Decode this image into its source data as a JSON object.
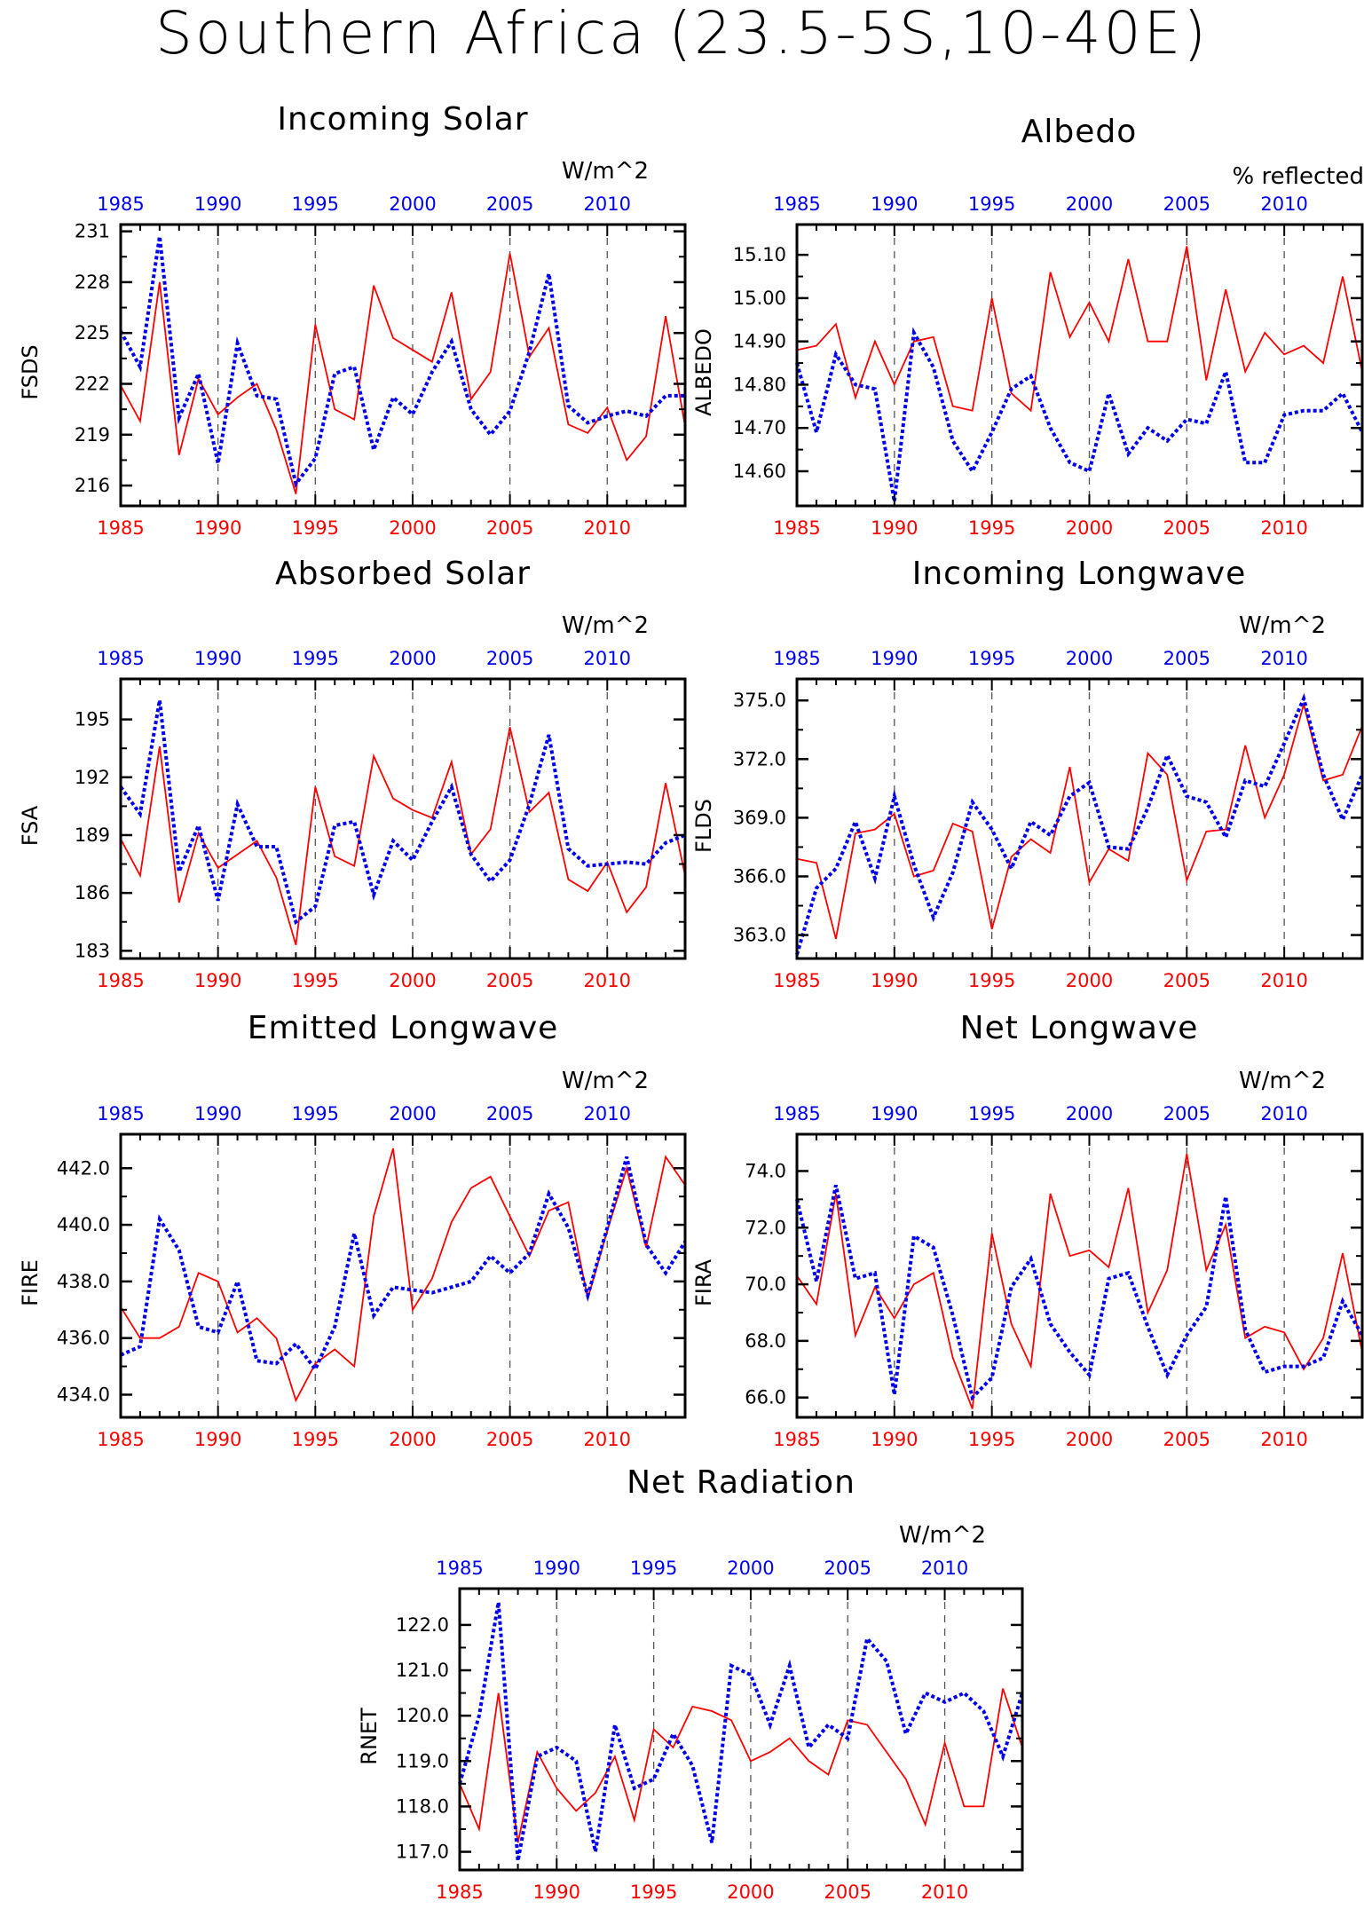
{
  "title": "Southern Africa (23.5-5S,10-40E)",
  "colors": {
    "red_series": "#ff0000",
    "blue_series": "#0000ee",
    "frame": "#000000"
  },
  "chart_data": [
    {
      "id": "fsds",
      "type": "line",
      "title": "Incoming Solar",
      "unit": "W/m^2",
      "ylabel": "FSDS",
      "xlim": [
        1985,
        2014
      ],
      "ylim": [
        214.8,
        231.4
      ],
      "yticks": [
        "216",
        "219",
        "222",
        "225",
        "228",
        "231"
      ],
      "xticks": [
        "1985",
        "1990",
        "1995",
        "2000",
        "2005",
        "2010"
      ],
      "x": [
        1985,
        1986,
        1987,
        1988,
        1989,
        1990,
        1991,
        1992,
        1993,
        1994,
        1995,
        1996,
        1997,
        1998,
        1999,
        2000,
        2001,
        2002,
        2003,
        2004,
        2005,
        2006,
        2007,
        2008,
        2009,
        2010,
        2011,
        2012,
        2013,
        2014
      ],
      "series": [
        {
          "color": "red",
          "style": "solid",
          "values": [
            221.9,
            219.8,
            228.0,
            217.8,
            222.3,
            220.2,
            221.2,
            222.0,
            219.3,
            215.5,
            225.5,
            220.5,
            219.9,
            227.8,
            224.7,
            224.0,
            223.3,
            227.4,
            221.1,
            222.7,
            229.7,
            223.6,
            225.3,
            219.6,
            219.1,
            220.6,
            217.5,
            218.9,
            226.0,
            219.5
          ]
        },
        {
          "color": "blue",
          "style": "dotted",
          "values": [
            225.1,
            223.0,
            230.7,
            220.0,
            222.6,
            217.3,
            224.4,
            221.3,
            221.1,
            216.1,
            217.6,
            222.6,
            223.0,
            218.1,
            221.2,
            220.2,
            222.7,
            224.5,
            220.5,
            219.0,
            220.4,
            223.9,
            228.5,
            220.7,
            219.7,
            220.1,
            220.4,
            220.1,
            221.3,
            221.3
          ]
        }
      ]
    },
    {
      "id": "albedo",
      "type": "line",
      "title": "Albedo",
      "unit": "% reflected",
      "ylabel": "ALBEDO",
      "xlim": [
        1985,
        2014
      ],
      "ylim": [
        14.52,
        15.17
      ],
      "yticks": [
        "14.60",
        "14.70",
        "14.80",
        "14.90",
        "15.00",
        "15.10"
      ],
      "xticks": [
        "1985",
        "1990",
        "1995",
        "2000",
        "2005",
        "2010"
      ],
      "x": [
        1985,
        1986,
        1987,
        1988,
        1989,
        1990,
        1991,
        1992,
        1993,
        1994,
        1995,
        1996,
        1997,
        1998,
        1999,
        2000,
        2001,
        2002,
        2003,
        2004,
        2005,
        2006,
        2007,
        2008,
        2009,
        2010,
        2011,
        2012,
        2013,
        2014
      ],
      "series": [
        {
          "color": "red",
          "style": "solid",
          "values": [
            14.88,
            14.89,
            14.94,
            14.77,
            14.9,
            14.8,
            14.9,
            14.91,
            14.75,
            14.74,
            15.0,
            14.78,
            14.74,
            15.06,
            14.91,
            14.99,
            14.9,
            15.09,
            14.9,
            14.9,
            15.12,
            14.81,
            15.02,
            14.83,
            14.92,
            14.87,
            14.89,
            14.85,
            15.05,
            14.83
          ]
        },
        {
          "color": "blue",
          "style": "dotted",
          "values": [
            14.85,
            14.69,
            14.87,
            14.8,
            14.79,
            14.53,
            14.92,
            14.84,
            14.67,
            14.6,
            14.69,
            14.79,
            14.82,
            14.7,
            14.62,
            14.6,
            14.78,
            14.64,
            14.7,
            14.67,
            14.72,
            14.71,
            14.83,
            14.62,
            14.62,
            14.73,
            14.74,
            14.74,
            14.78,
            14.69
          ]
        }
      ]
    },
    {
      "id": "fsa",
      "type": "line",
      "title": "Absorbed Solar",
      "unit": "W/m^2",
      "ylabel": "FSA",
      "xlim": [
        1985,
        2014
      ],
      "ylim": [
        182.6,
        197.1
      ],
      "yticks": [
        "183",
        "186",
        "189",
        "192",
        "195"
      ],
      "xticks": [
        "1985",
        "1990",
        "1995",
        "2000",
        "2005",
        "2010"
      ],
      "x": [
        1985,
        1986,
        1987,
        1988,
        1989,
        1990,
        1991,
        1992,
        1993,
        1994,
        1995,
        1996,
        1997,
        1998,
        1999,
        2000,
        2001,
        2002,
        2003,
        2004,
        2005,
        2006,
        2007,
        2008,
        2009,
        2010,
        2011,
        2012,
        2013,
        2014
      ],
      "series": [
        {
          "color": "red",
          "style": "solid",
          "values": [
            188.8,
            186.9,
            193.6,
            185.5,
            189.1,
            187.3,
            188.0,
            188.7,
            186.8,
            183.3,
            191.5,
            187.9,
            187.4,
            193.1,
            190.9,
            190.3,
            189.9,
            192.8,
            188.0,
            189.3,
            194.6,
            190.2,
            191.2,
            186.7,
            186.1,
            187.6,
            185.0,
            186.3,
            191.7,
            186.9
          ]
        },
        {
          "color": "blue",
          "style": "dotted",
          "values": [
            191.5,
            190.1,
            196.0,
            187.1,
            189.5,
            185.6,
            190.6,
            188.4,
            188.4,
            184.5,
            185.3,
            189.5,
            189.7,
            185.9,
            188.7,
            187.7,
            189.7,
            191.5,
            188.0,
            186.6,
            187.7,
            190.6,
            194.2,
            188.3,
            187.4,
            187.5,
            187.6,
            187.5,
            188.6,
            189.0
          ]
        }
      ]
    },
    {
      "id": "flds",
      "type": "line",
      "title": "Incoming Longwave",
      "unit": "W/m^2",
      "ylabel": "FLDS",
      "xlim": [
        1985,
        2014
      ],
      "ylim": [
        361.8,
        376.1
      ],
      "yticks": [
        "363.0",
        "366.0",
        "369.0",
        "372.0",
        "375.0"
      ],
      "xticks": [
        "1985",
        "1990",
        "1995",
        "2000",
        "2005",
        "2010"
      ],
      "x": [
        1985,
        1986,
        1987,
        1988,
        1989,
        1990,
        1991,
        1992,
        1993,
        1994,
        1995,
        1996,
        1997,
        1998,
        1999,
        2000,
        2001,
        2002,
        2003,
        2004,
        2005,
        2006,
        2007,
        2008,
        2009,
        2010,
        2011,
        2012,
        2013,
        2014
      ],
      "series": [
        {
          "color": "red",
          "style": "solid",
          "values": [
            366.9,
            366.7,
            362.8,
            368.2,
            368.4,
            369.2,
            366.0,
            366.3,
            368.7,
            368.3,
            363.3,
            367.0,
            367.9,
            367.2,
            371.6,
            365.7,
            367.4,
            366.8,
            372.3,
            371.2,
            365.8,
            368.3,
            368.4,
            372.7,
            369.0,
            371.2,
            374.8,
            370.9,
            371.2,
            373.7
          ]
        },
        {
          "color": "blue",
          "style": "dotted",
          "values": [
            362.0,
            365.4,
            366.4,
            368.8,
            365.9,
            370.1,
            366.6,
            363.9,
            366.2,
            369.8,
            368.4,
            366.4,
            368.8,
            368.1,
            370.1,
            370.8,
            367.5,
            367.4,
            369.5,
            372.2,
            370.1,
            369.8,
            368.0,
            370.9,
            370.6,
            372.8,
            375.1,
            371.2,
            368.9,
            371.2
          ]
        }
      ]
    },
    {
      "id": "fire",
      "type": "line",
      "title": "Emitted Longwave",
      "unit": "W/m^2",
      "ylabel": "FIRE",
      "xlim": [
        1985,
        2014
      ],
      "ylim": [
        433.2,
        443.2
      ],
      "yticks": [
        "434.0",
        "436.0",
        "438.0",
        "440.0",
        "442.0"
      ],
      "xticks": [
        "1985",
        "1990",
        "1995",
        "2000",
        "2005",
        "2010"
      ],
      "x": [
        1985,
        1986,
        1987,
        1988,
        1989,
        1990,
        1991,
        1992,
        1993,
        1994,
        1995,
        1996,
        1997,
        1998,
        1999,
        2000,
        2001,
        2002,
        2003,
        2004,
        2005,
        2006,
        2007,
        2008,
        2009,
        2010,
        2011,
        2012,
        2013,
        2014
      ],
      "series": [
        {
          "color": "red",
          "style": "solid",
          "values": [
            437.1,
            436.0,
            436.0,
            436.4,
            438.3,
            438.0,
            436.2,
            436.7,
            436.0,
            433.8,
            435.1,
            435.6,
            435.0,
            440.3,
            442.7,
            437.0,
            438.1,
            440.1,
            441.3,
            441.7,
            440.3,
            438.9,
            440.5,
            440.8,
            437.4,
            439.8,
            442.0,
            439.2,
            442.4,
            441.4
          ]
        },
        {
          "color": "blue",
          "style": "dotted",
          "values": [
            435.4,
            435.7,
            440.2,
            439.1,
            436.4,
            436.2,
            438.0,
            435.2,
            435.1,
            435.8,
            434.9,
            436.4,
            439.7,
            436.8,
            437.8,
            437.7,
            437.6,
            437.8,
            438.0,
            438.9,
            438.3,
            439.0,
            441.1,
            439.9,
            437.5,
            439.9,
            442.4,
            439.3,
            438.3,
            439.4
          ]
        }
      ]
    },
    {
      "id": "fira",
      "type": "line",
      "title": "Net Longwave",
      "unit": "W/m^2",
      "ylabel": "FIRA",
      "xlim": [
        1985,
        2014
      ],
      "ylim": [
        65.3,
        75.3
      ],
      "yticks": [
        "66.0",
        "68.0",
        "70.0",
        "72.0",
        "74.0"
      ],
      "xticks": [
        "1985",
        "1990",
        "1995",
        "2000",
        "2005",
        "2010"
      ],
      "x": [
        1985,
        1986,
        1987,
        1988,
        1989,
        1990,
        1991,
        1992,
        1993,
        1994,
        1995,
        1996,
        1997,
        1998,
        1999,
        2000,
        2001,
        2002,
        2003,
        2004,
        2005,
        2006,
        2007,
        2008,
        2009,
        2010,
        2011,
        2012,
        2013,
        2014
      ],
      "series": [
        {
          "color": "red",
          "style": "solid",
          "values": [
            70.3,
            69.3,
            73.2,
            68.2,
            69.9,
            68.8,
            70.0,
            70.4,
            67.4,
            65.6,
            71.8,
            68.6,
            67.1,
            73.2,
            71.0,
            71.2,
            70.6,
            73.4,
            69.0,
            70.5,
            74.6,
            70.5,
            72.1,
            68.1,
            68.5,
            68.3,
            67.0,
            68.1,
            71.1,
            67.6
          ]
        },
        {
          "color": "blue",
          "style": "dotted",
          "values": [
            73.0,
            70.1,
            73.5,
            70.2,
            70.4,
            66.1,
            71.7,
            71.3,
            68.9,
            66.0,
            66.7,
            69.9,
            70.9,
            68.6,
            67.6,
            66.8,
            70.2,
            70.4,
            68.5,
            66.8,
            68.2,
            69.2,
            73.1,
            68.4,
            66.9,
            67.1,
            67.1,
            67.4,
            69.4,
            68.2
          ]
        }
      ]
    },
    {
      "id": "rnet",
      "type": "line",
      "title": "Net Radiation",
      "unit": "W/m^2",
      "ylabel": "RNET",
      "xlim": [
        1985,
        2014
      ],
      "ylim": [
        116.6,
        122.8
      ],
      "yticks": [
        "117.0",
        "118.0",
        "119.0",
        "120.0",
        "121.0",
        "122.0"
      ],
      "xticks": [
        "1985",
        "1990",
        "1995",
        "2000",
        "2005",
        "2010"
      ],
      "x": [
        1985,
        1986,
        1987,
        1988,
        1989,
        1990,
        1991,
        1992,
        1993,
        1994,
        1995,
        1996,
        1997,
        1998,
        1999,
        2000,
        2001,
        2002,
        2003,
        2004,
        2005,
        2006,
        2007,
        2008,
        2009,
        2010,
        2011,
        2012,
        2013,
        2014
      ],
      "series": [
        {
          "color": "red",
          "style": "solid",
          "values": [
            118.5,
            117.5,
            120.5,
            117.2,
            119.2,
            118.4,
            117.9,
            118.3,
            119.1,
            117.7,
            119.7,
            119.3,
            120.2,
            120.1,
            119.9,
            119.0,
            119.2,
            119.5,
            119.0,
            118.7,
            119.9,
            119.8,
            119.2,
            118.6,
            117.6,
            119.4,
            118.0,
            118.0,
            120.6,
            119.3
          ]
        },
        {
          "color": "blue",
          "style": "dotted",
          "values": [
            118.5,
            120.0,
            122.5,
            116.8,
            119.1,
            119.3,
            119.0,
            117.0,
            119.8,
            118.4,
            118.6,
            119.6,
            118.9,
            117.2,
            121.1,
            120.9,
            119.8,
            121.1,
            119.3,
            119.8,
            119.5,
            121.7,
            121.2,
            119.6,
            120.5,
            120.3,
            120.5,
            120.1,
            119.1,
            120.5
          ]
        }
      ]
    }
  ]
}
